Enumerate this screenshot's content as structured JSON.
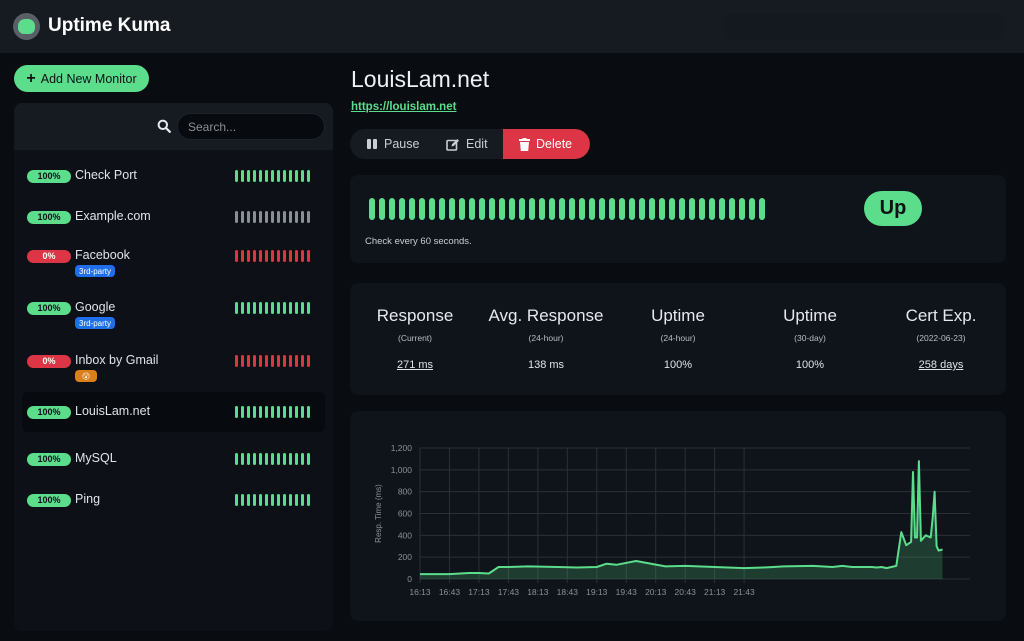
{
  "header": {
    "title": "Uptime Kuma"
  },
  "sidebar": {
    "add_label": "Add New Monitor",
    "search_placeholder": "Search...",
    "monitors": [
      {
        "name": "Check Port",
        "uptime": "100%",
        "status": "up",
        "tag": "",
        "beat_color": "#5cdd8b"
      },
      {
        "name": "Example.com",
        "uptime": "100%",
        "status": "up",
        "tag": "",
        "beat_color": "#8a8f96"
      },
      {
        "name": "Facebook",
        "uptime": "0%",
        "status": "down",
        "tag": "3rd-party",
        "beat_color": "#dc3545"
      },
      {
        "name": "Google",
        "uptime": "100%",
        "status": "up",
        "tag": "3rd-party",
        "beat_color": "#5cdd8b"
      },
      {
        "name": "Inbox by Gmail",
        "uptime": "0%",
        "status": "down",
        "tag": "😮",
        "beat_color": "#dc3545"
      },
      {
        "name": "LouisLam.net",
        "uptime": "100%",
        "status": "up",
        "tag": "",
        "beat_color": "#5cdd8b"
      },
      {
        "name": "MySQL",
        "uptime": "100%",
        "status": "up",
        "tag": "",
        "beat_color": "#5cdd8b"
      },
      {
        "name": "Ping",
        "uptime": "100%",
        "status": "up",
        "tag": "",
        "beat_color": "#5cdd8b"
      }
    ]
  },
  "main": {
    "title": "LouisLam.net",
    "url": "https://louislam.net",
    "buttons": {
      "pause": "Pause",
      "edit": "Edit",
      "delete": "Delete"
    },
    "status": "Up",
    "check_text": "Check every 60 seconds.",
    "stats": [
      {
        "title": "Response",
        "sub": "(Current)",
        "value": "271 ms",
        "link": true
      },
      {
        "title": "Avg. Response",
        "sub": "(24-hour)",
        "value": "138 ms",
        "link": false
      },
      {
        "title": "Uptime",
        "sub": "(24-hour)",
        "value": "100%",
        "link": false
      },
      {
        "title": "Uptime",
        "sub": "(30-day)",
        "value": "100%",
        "link": false
      },
      {
        "title": "Cert Exp.",
        "sub": "(2022-06-23)",
        "value": "258 days",
        "link": true
      }
    ]
  },
  "colors": {
    "accent": "#5cdd8b",
    "danger": "#dc3545",
    "tag_blue": "#1f6feb",
    "tag_orange": "#d9801d"
  },
  "chart_data": {
    "type": "area",
    "ylabel": "Resp. Time (ms)",
    "ylim": [
      0,
      1200
    ],
    "y_ticks": [
      "0",
      "200",
      "400",
      "600",
      "800",
      "1,000",
      "1,200"
    ],
    "x_ticks": [
      "16:13",
      "16:43",
      "17:13",
      "17:43",
      "18:13",
      "18:43",
      "19:13",
      "19:43",
      "20:13",
      "20:43",
      "21:13",
      "21:43"
    ],
    "x_minutes": [
      0,
      30,
      50,
      60,
      70,
      80,
      90,
      110,
      140,
      160,
      180,
      190,
      200,
      220,
      250,
      270,
      300,
      330,
      350,
      360,
      370,
      400,
      420,
      430,
      440,
      460,
      465,
      470,
      475,
      480,
      485,
      490,
      495,
      500,
      502,
      504,
      506,
      508,
      510,
      515,
      520,
      522,
      524,
      526,
      528,
      532
    ],
    "values": [
      45,
      45,
      55,
      55,
      50,
      110,
      110,
      115,
      110,
      105,
      110,
      140,
      130,
      165,
      115,
      120,
      110,
      100,
      105,
      110,
      115,
      120,
      110,
      120,
      110,
      110,
      105,
      110,
      100,
      110,
      120,
      430,
      310,
      340,
      980,
      380,
      380,
      1080,
      350,
      400,
      380,
      560,
      800,
      300,
      260,
      270
    ]
  }
}
